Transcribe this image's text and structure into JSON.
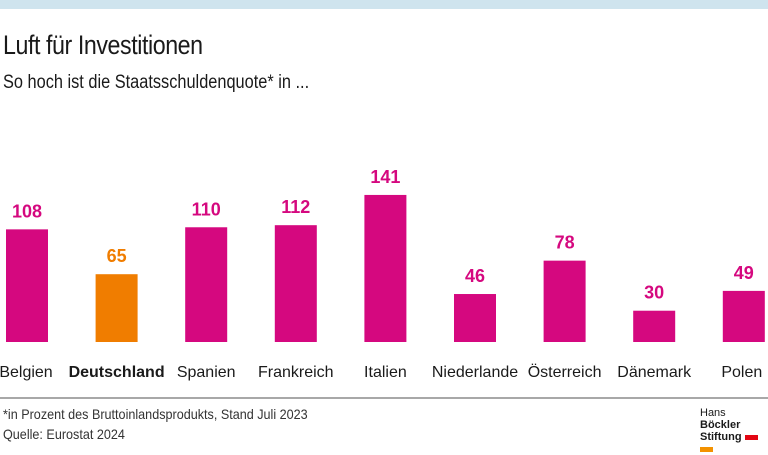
{
  "title": "Luft für Investitionen",
  "subtitle": "So hoch ist die Staatsschuldenquote* in ...",
  "footnote": "*in Prozent des Bruttoinlandsprodukts, Stand Juli 2023",
  "source": "Quelle: Eurostat 2024",
  "logo": {
    "line1a": "Hans",
    "line1b": "Böckler",
    "line2": "Stiftung",
    "colors": [
      "#e30613",
      "#f39200"
    ]
  },
  "colors": {
    "default": "#d5087f",
    "highlight": "#f07d00",
    "band": "#cfe4ee"
  },
  "chart_data": {
    "type": "bar",
    "categories": [
      "Belgien",
      "Deutschland",
      "Spanien",
      "Frankreich",
      "Italien",
      "Niederlande",
      "Österreich",
      "Dänemark",
      "Polen"
    ],
    "values": [
      108,
      65,
      110,
      112,
      141,
      46,
      78,
      30,
      49
    ],
    "highlight": "Deutschland",
    "ylim": [
      0,
      141
    ],
    "grid": false
  }
}
